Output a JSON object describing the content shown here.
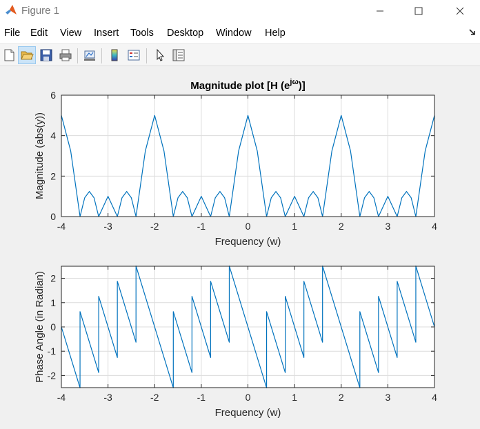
{
  "window": {
    "title": "Figure 1"
  },
  "menu": [
    "File",
    "Edit",
    "View",
    "Insert",
    "Tools",
    "Desktop",
    "Window",
    "Help"
  ],
  "toolbar": {
    "icons": [
      "new-figure-icon",
      "open-file-icon",
      "save-icon",
      "print-icon",
      "link-plot-icon",
      "insert-colorbar-icon",
      "insert-legend-icon",
      "edit-plot-icon",
      "property-inspector-icon"
    ]
  },
  "colors": {
    "line": "#0072bd",
    "grid": "#dcdcdc",
    "axes_bg": "#ffffff",
    "figure_bg": "#f0f0f0"
  },
  "chart_data": [
    {
      "type": "line",
      "title": "Magnitude plot [H (e",
      "title_superscript": "jω",
      "title_end": ")]",
      "xlabel": "Frequency (w)",
      "ylabel": "Magnitude (abs(y))",
      "xlim": [
        -4,
        4
      ],
      "ylim": [
        0,
        6
      ],
      "xticks": [
        "-4",
        "-3",
        "-2",
        "-1",
        "0",
        "1",
        "2",
        "3",
        "4"
      ],
      "yticks": [
        "0",
        "2",
        "4",
        "6"
      ],
      "grid": true,
      "series": [
        {
          "x": [
            -4.0,
            -3.8,
            -3.6,
            -3.5,
            -3.4,
            -3.3,
            -3.2,
            -3.0,
            -2.8,
            -2.7,
            -2.6,
            -2.5,
            -2.4,
            -2.2,
            -2.0,
            -1.8,
            -1.6,
            -1.5,
            -1.4,
            -1.3,
            -1.2,
            -1.0,
            -0.8,
            -0.7,
            -0.6,
            -0.5,
            -0.4,
            -0.2,
            0.0,
            0.2,
            0.4,
            0.5,
            0.6,
            0.7,
            0.8,
            1.0,
            1.2,
            1.3,
            1.4,
            1.5,
            1.6,
            1.8,
            2.0,
            2.2,
            2.4,
            2.5,
            2.6,
            2.7,
            2.8,
            3.0,
            3.2,
            3.3,
            3.4,
            3.5,
            3.6,
            3.8,
            4.0
          ],
          "y": [
            5.0,
            3.24,
            0.0,
            0.93,
            1.24,
            0.93,
            0.0,
            1.0,
            0.0,
            0.93,
            1.24,
            0.93,
            0.0,
            3.24,
            5.0,
            3.24,
            0.0,
            0.93,
            1.24,
            0.93,
            0.0,
            1.0,
            0.0,
            0.93,
            1.24,
            0.93,
            0.0,
            3.24,
            5.0,
            3.24,
            0.0,
            0.93,
            1.24,
            0.93,
            0.0,
            1.0,
            0.0,
            0.93,
            1.24,
            0.93,
            0.0,
            3.24,
            5.0,
            3.24,
            0.0,
            0.93,
            1.24,
            0.93,
            0.0,
            1.0,
            0.0,
            0.93,
            1.24,
            0.93,
            0.0,
            3.24,
            5.0
          ]
        }
      ]
    },
    {
      "type": "line",
      "title": "",
      "xlabel": "Frequency (w)",
      "ylabel": "Phase Angle (in Radian)",
      "xlim": [
        -4,
        4
      ],
      "ylim": [
        -2.5,
        2.5
      ],
      "xticks": [
        "-4",
        "-3",
        "-2",
        "-1",
        "0",
        "1",
        "2",
        "3",
        "4"
      ],
      "yticks": [
        "-2",
        "-1",
        "0",
        "1",
        "2"
      ],
      "grid": true,
      "series": [
        {
          "x": [
            -4.0,
            -3.6,
            -3.6,
            -3.2,
            -3.2,
            -2.8,
            -2.8,
            -2.4,
            -2.4,
            -1.6,
            -1.6,
            -1.2,
            -1.2,
            -0.8,
            -0.8,
            -0.4,
            -0.4,
            0.4,
            0.4,
            0.8,
            0.8,
            1.2,
            1.2,
            1.6,
            1.6,
            2.4,
            2.4,
            2.8,
            2.8,
            3.2,
            3.2,
            3.6,
            3.6,
            4.0
          ],
          "y": [
            0.0,
            -2.51,
            0.63,
            -1.88,
            1.26,
            -1.26,
            1.88,
            -0.63,
            2.51,
            -2.51,
            0.63,
            -1.88,
            1.26,
            -1.26,
            1.88,
            -0.63,
            2.51,
            -2.51,
            0.63,
            -1.88,
            1.26,
            -1.26,
            1.88,
            -0.63,
            2.51,
            -2.51,
            0.63,
            -1.88,
            1.26,
            -1.26,
            1.88,
            -0.63,
            2.51,
            0.0
          ]
        }
      ]
    }
  ]
}
